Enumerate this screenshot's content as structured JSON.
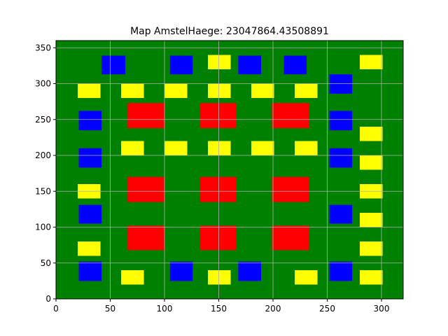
{
  "chart_data": {
    "type": "heatmap",
    "title": "Map AmstelHaege: 23047864.43508891",
    "xlabel": "",
    "ylabel": "",
    "xlim": [
      0,
      320
    ],
    "ylim": [
      0,
      360
    ],
    "xticks": [
      0,
      50,
      100,
      150,
      200,
      250,
      300
    ],
    "yticks": [
      0,
      50,
      100,
      150,
      200,
      250,
      300,
      350
    ],
    "grid": true,
    "background_color": "#008000",
    "colors": {
      "red": "#ff0000",
      "blue": "#0000ff",
      "yellow": "#ffff00"
    },
    "rects": [
      {
        "c": "blue",
        "x0": 42,
        "x1": 64,
        "y0": 313,
        "y1": 339
      },
      {
        "c": "blue",
        "x0": 105,
        "x1": 126,
        "y0": 313,
        "y1": 339
      },
      {
        "c": "blue",
        "x0": 168,
        "x1": 189,
        "y0": 313,
        "y1": 339
      },
      {
        "c": "blue",
        "x0": 210,
        "x1": 231,
        "y0": 313,
        "y1": 339
      },
      {
        "c": "blue",
        "x0": 252,
        "x1": 273,
        "y0": 286,
        "y1": 313
      },
      {
        "c": "blue",
        "x0": 21,
        "x1": 42,
        "y0": 235,
        "y1": 262
      },
      {
        "c": "blue",
        "x0": 252,
        "x1": 273,
        "y0": 235,
        "y1": 262
      },
      {
        "c": "blue",
        "x0": 21,
        "x1": 42,
        "y0": 183,
        "y1": 210
      },
      {
        "c": "blue",
        "x0": 252,
        "x1": 273,
        "y0": 183,
        "y1": 210
      },
      {
        "c": "blue",
        "x0": 21,
        "x1": 42,
        "y0": 105,
        "y1": 131
      },
      {
        "c": "blue",
        "x0": 252,
        "x1": 273,
        "y0": 105,
        "y1": 131
      },
      {
        "c": "blue",
        "x0": 21,
        "x1": 42,
        "y0": 25,
        "y1": 52
      },
      {
        "c": "blue",
        "x0": 105,
        "x1": 126,
        "y0": 25,
        "y1": 52
      },
      {
        "c": "blue",
        "x0": 168,
        "x1": 189,
        "y0": 25,
        "y1": 52
      },
      {
        "c": "blue",
        "x0": 252,
        "x1": 273,
        "y0": 25,
        "y1": 52
      },
      {
        "c": "yellow",
        "x0": 140,
        "x1": 161,
        "y0": 320,
        "y1": 340
      },
      {
        "c": "yellow",
        "x0": 280,
        "x1": 301,
        "y0": 320,
        "y1": 340
      },
      {
        "c": "yellow",
        "x0": 20,
        "x1": 41,
        "y0": 280,
        "y1": 300
      },
      {
        "c": "yellow",
        "x0": 60,
        "x1": 81,
        "y0": 280,
        "y1": 300
      },
      {
        "c": "yellow",
        "x0": 100,
        "x1": 121,
        "y0": 280,
        "y1": 300
      },
      {
        "c": "yellow",
        "x0": 140,
        "x1": 161,
        "y0": 280,
        "y1": 300
      },
      {
        "c": "yellow",
        "x0": 180,
        "x1": 201,
        "y0": 280,
        "y1": 300
      },
      {
        "c": "yellow",
        "x0": 220,
        "x1": 241,
        "y0": 280,
        "y1": 300
      },
      {
        "c": "yellow",
        "x0": 280,
        "x1": 301,
        "y0": 220,
        "y1": 240
      },
      {
        "c": "yellow",
        "x0": 60,
        "x1": 81,
        "y0": 200,
        "y1": 220
      },
      {
        "c": "yellow",
        "x0": 100,
        "x1": 121,
        "y0": 200,
        "y1": 220
      },
      {
        "c": "yellow",
        "x0": 140,
        "x1": 161,
        "y0": 200,
        "y1": 220
      },
      {
        "c": "yellow",
        "x0": 180,
        "x1": 201,
        "y0": 200,
        "y1": 220
      },
      {
        "c": "yellow",
        "x0": 220,
        "x1": 241,
        "y0": 200,
        "y1": 220
      },
      {
        "c": "yellow",
        "x0": 280,
        "x1": 301,
        "y0": 180,
        "y1": 200
      },
      {
        "c": "yellow",
        "x0": 20,
        "x1": 41,
        "y0": 140,
        "y1": 160
      },
      {
        "c": "yellow",
        "x0": 280,
        "x1": 301,
        "y0": 140,
        "y1": 160
      },
      {
        "c": "yellow",
        "x0": 280,
        "x1": 301,
        "y0": 100,
        "y1": 120
      },
      {
        "c": "yellow",
        "x0": 20,
        "x1": 41,
        "y0": 60,
        "y1": 80
      },
      {
        "c": "yellow",
        "x0": 280,
        "x1": 301,
        "y0": 60,
        "y1": 80
      },
      {
        "c": "yellow",
        "x0": 60,
        "x1": 81,
        "y0": 20,
        "y1": 40
      },
      {
        "c": "yellow",
        "x0": 140,
        "x1": 161,
        "y0": 20,
        "y1": 40
      },
      {
        "c": "yellow",
        "x0": 220,
        "x1": 241,
        "y0": 20,
        "y1": 40
      },
      {
        "c": "yellow",
        "x0": 280,
        "x1": 301,
        "y0": 20,
        "y1": 40
      },
      {
        "c": "red",
        "x0": 66,
        "x1": 100,
        "y0": 238,
        "y1": 273
      },
      {
        "c": "red",
        "x0": 133,
        "x1": 166,
        "y0": 238,
        "y1": 273
      },
      {
        "c": "red",
        "x0": 199,
        "x1": 233,
        "y0": 238,
        "y1": 273
      },
      {
        "c": "red",
        "x0": 66,
        "x1": 100,
        "y0": 135,
        "y1": 170
      },
      {
        "c": "red",
        "x0": 133,
        "x1": 166,
        "y0": 135,
        "y1": 170
      },
      {
        "c": "red",
        "x0": 199,
        "x1": 233,
        "y0": 135,
        "y1": 170
      },
      {
        "c": "red",
        "x0": 66,
        "x1": 100,
        "y0": 68,
        "y1": 102
      },
      {
        "c": "red",
        "x0": 133,
        "x1": 166,
        "y0": 68,
        "y1": 102
      },
      {
        "c": "red",
        "x0": 199,
        "x1": 233,
        "y0": 68,
        "y1": 102
      }
    ]
  }
}
